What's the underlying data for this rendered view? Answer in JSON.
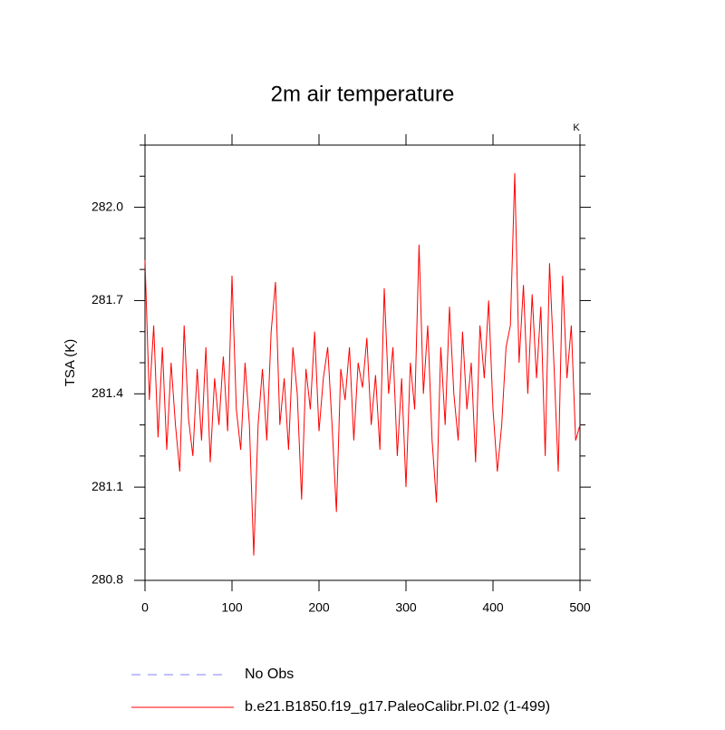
{
  "chart_data": {
    "type": "line",
    "title": "2m air temperature",
    "y_label": "TSA  (K)",
    "units_label": "K",
    "xlim": [
      0,
      500
    ],
    "xticks": [
      0,
      100,
      200,
      300,
      400,
      500
    ],
    "ylim": [
      280.8,
      282.2
    ],
    "yticks": [
      280.8,
      281.1,
      281.4,
      281.7,
      {
        "value": 282,
        "label": "282.0"
      }
    ],
    "yminor_ticks": [
      280.9,
      281.0,
      281.2,
      281.3,
      281.5,
      281.6,
      281.8,
      281.9,
      282.1,
      282.2
    ],
    "x": [
      0,
      5,
      10,
      15,
      20,
      25,
      30,
      35,
      40,
      45,
      50,
      55,
      60,
      65,
      70,
      75,
      80,
      85,
      90,
      95,
      100,
      105,
      110,
      115,
      120,
      125,
      130,
      135,
      140,
      145,
      150,
      155,
      160,
      165,
      170,
      175,
      180,
      185,
      190,
      195,
      200,
      205,
      210,
      215,
      220,
      225,
      230,
      235,
      240,
      245,
      250,
      255,
      260,
      265,
      270,
      275,
      280,
      285,
      290,
      295,
      300,
      305,
      310,
      315,
      320,
      325,
      330,
      335,
      340,
      345,
      350,
      355,
      360,
      365,
      370,
      375,
      380,
      385,
      390,
      395,
      400,
      405,
      410,
      415,
      420,
      425,
      430,
      435,
      440,
      445,
      450,
      455,
      460,
      465,
      470,
      475,
      480,
      485,
      490,
      495,
      500
    ],
    "series": [
      {
        "name": "b.e21.B1850.f19_g17.PaleoCalibr.PI.02 (1-499)",
        "color": "#ff0000",
        "values": [
          281.83,
          281.38,
          281.62,
          281.26,
          281.55,
          281.22,
          281.5,
          281.3,
          281.15,
          281.62,
          281.32,
          281.2,
          281.48,
          281.25,
          281.55,
          281.18,
          281.45,
          281.3,
          281.52,
          281.28,
          281.78,
          281.35,
          281.22,
          281.5,
          281.3,
          280.88,
          281.3,
          281.48,
          281.25,
          281.6,
          281.76,
          281.3,
          281.45,
          281.22,
          281.55,
          281.4,
          281.06,
          281.48,
          281.35,
          281.6,
          281.28,
          281.45,
          281.55,
          281.3,
          281.02,
          281.48,
          281.38,
          281.55,
          281.25,
          281.5,
          281.42,
          281.58,
          281.3,
          281.46,
          281.22,
          281.74,
          281.4,
          281.55,
          281.2,
          281.45,
          281.1,
          281.5,
          281.35,
          281.88,
          281.4,
          281.62,
          281.25,
          281.05,
          281.55,
          281.3,
          281.68,
          281.4,
          281.25,
          281.6,
          281.35,
          281.5,
          281.18,
          281.62,
          281.45,
          281.7,
          281.35,
          281.15,
          281.3,
          281.55,
          281.62,
          282.11,
          281.5,
          281.75,
          281.4,
          281.72,
          281.45,
          281.68,
          281.2,
          281.82,
          281.5,
          281.15,
          281.78,
          281.45,
          281.62,
          281.25,
          281.3
        ]
      }
    ],
    "extra_legend": [
      {
        "name": "No Obs",
        "color": "#8080ff",
        "style": "dashed"
      }
    ]
  }
}
